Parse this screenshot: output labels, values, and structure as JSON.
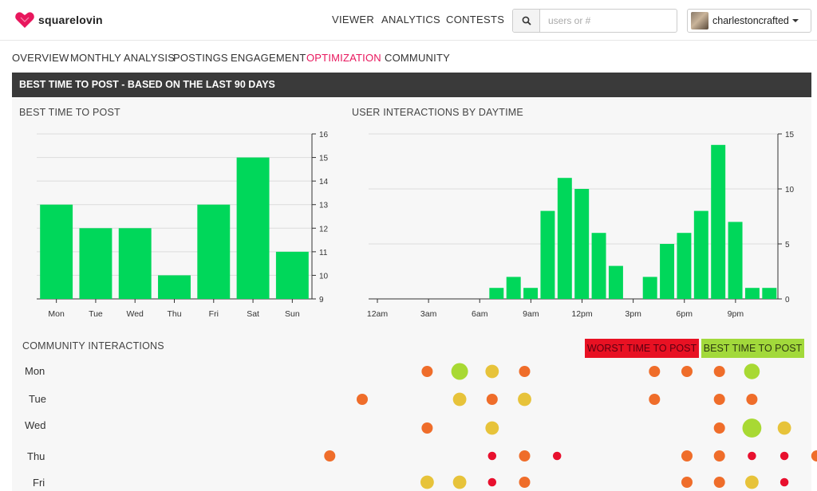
{
  "app": {
    "name": "squarelovin"
  },
  "topnav": [
    {
      "label": "VIEWER"
    },
    {
      "label": "ANALYTICS"
    },
    {
      "label": "CONTESTS"
    }
  ],
  "search": {
    "placeholder": "users or #"
  },
  "user": {
    "name": "charlestoncrafted"
  },
  "subnav": [
    {
      "label": "OVERVIEW"
    },
    {
      "label": "MONTHLY ANALYSIS"
    },
    {
      "label": "POSTINGS"
    },
    {
      "label": "ENGAGEMENT"
    },
    {
      "label": "OPTIMIZATION",
      "active": true
    },
    {
      "label": "COMMUNITY"
    }
  ],
  "banner": {
    "title": "BEST TIME TO POST - BASED ON THE LAST 90 DAYS"
  },
  "colors": {
    "bar": "#00d75a",
    "accent": "#e8175d",
    "worst": "#e81123",
    "best": "#a2d93b",
    "dot_high": "#a8d933",
    "dot_mid": "#e7c33a",
    "dot_low": "#ef6d2a",
    "dot_min": "#e8102e"
  },
  "chart_data": [
    {
      "type": "bar",
      "title": "BEST TIME TO POST",
      "categories": [
        "Mon",
        "Tue",
        "Wed",
        "Thu",
        "Fri",
        "Sat",
        "Sun"
      ],
      "values": [
        13,
        12,
        12,
        10,
        13,
        15,
        11
      ],
      "ylim": [
        9,
        16
      ],
      "yticks": [
        9,
        10,
        11,
        12,
        13,
        14,
        15,
        16
      ],
      "grid": true
    },
    {
      "type": "bar",
      "title": "USER INTERACTIONS BY DAYTIME",
      "x": [
        0,
        1,
        2,
        3,
        4,
        5,
        6,
        7,
        8,
        9,
        10,
        11,
        12,
        13,
        14,
        15,
        16,
        17,
        18,
        19,
        20,
        21,
        22,
        23
      ],
      "values": [
        0,
        0,
        0,
        0,
        0,
        0,
        0,
        1,
        2,
        1,
        8,
        11,
        10,
        6,
        3,
        0,
        2,
        5,
        6,
        8,
        14,
        7,
        1,
        1
      ],
      "xtick_labels": [
        "12am",
        "3am",
        "6am",
        "9am",
        "12pm",
        "3pm",
        "6pm",
        "9pm"
      ],
      "xtick_positions": [
        0,
        3,
        6,
        9,
        12,
        15,
        18,
        21
      ],
      "ylim": [
        0,
        15
      ],
      "yticks": [
        0,
        5,
        10,
        15
      ],
      "grid": true
    },
    {
      "type": "scatter",
      "title": "COMMUNITY INTERACTIONS",
      "rows": [
        "Mon",
        "Tue",
        "Wed",
        "Thu",
        "Fri"
      ],
      "points": [
        {
          "row": 0,
          "hour": 12,
          "level": "low",
          "size": 1
        },
        {
          "row": 0,
          "hour": 13,
          "level": "high",
          "size": 1.5
        },
        {
          "row": 0,
          "hour": 14,
          "level": "mid",
          "size": 1.2
        },
        {
          "row": 0,
          "hour": 15,
          "level": "low",
          "size": 1
        },
        {
          "row": 0,
          "hour": 19,
          "level": "low",
          "size": 1
        },
        {
          "row": 0,
          "hour": 20,
          "level": "low",
          "size": 1
        },
        {
          "row": 0,
          "hour": 21,
          "level": "low",
          "size": 1
        },
        {
          "row": 0,
          "hour": 22,
          "level": "high",
          "size": 1.4
        },
        {
          "row": 1,
          "hour": 10,
          "level": "low",
          "size": 1
        },
        {
          "row": 1,
          "hour": 13,
          "level": "mid",
          "size": 1.2
        },
        {
          "row": 1,
          "hour": 14,
          "level": "low",
          "size": 1
        },
        {
          "row": 1,
          "hour": 15,
          "level": "mid",
          "size": 1.2
        },
        {
          "row": 1,
          "hour": 19,
          "level": "low",
          "size": 1
        },
        {
          "row": 1,
          "hour": 21,
          "level": "low",
          "size": 1
        },
        {
          "row": 1,
          "hour": 22,
          "level": "low",
          "size": 1
        },
        {
          "row": 2,
          "hour": 12,
          "level": "low",
          "size": 1
        },
        {
          "row": 2,
          "hour": 14,
          "level": "mid",
          "size": 1.2
        },
        {
          "row": 2,
          "hour": 21,
          "level": "low",
          "size": 1
        },
        {
          "row": 2,
          "hour": 22,
          "level": "high",
          "size": 1.7
        },
        {
          "row": 2,
          "hour": 23,
          "level": "mid",
          "size": 1.2
        },
        {
          "row": 3,
          "hour": 9,
          "level": "low",
          "size": 1
        },
        {
          "row": 3,
          "hour": 14,
          "level": "min",
          "size": 0.75
        },
        {
          "row": 3,
          "hour": 15,
          "level": "low",
          "size": 1
        },
        {
          "row": 3,
          "hour": 16,
          "level": "min",
          "size": 0.75
        },
        {
          "row": 3,
          "hour": 20,
          "level": "low",
          "size": 1
        },
        {
          "row": 3,
          "hour": 21,
          "level": "low",
          "size": 1
        },
        {
          "row": 3,
          "hour": 22,
          "level": "min",
          "size": 0.75
        },
        {
          "row": 3,
          "hour": 23,
          "level": "min",
          "size": 0.75
        },
        {
          "row": 3,
          "hour": 24,
          "level": "low",
          "size": 1
        },
        {
          "row": 4,
          "hour": 12,
          "level": "mid",
          "size": 1.2
        },
        {
          "row": 4,
          "hour": 13,
          "level": "mid",
          "size": 1.2
        },
        {
          "row": 4,
          "hour": 14,
          "level": "min",
          "size": 0.75
        },
        {
          "row": 4,
          "hour": 15,
          "level": "low",
          "size": 1
        },
        {
          "row": 4,
          "hour": 20,
          "level": "low",
          "size": 1
        },
        {
          "row": 4,
          "hour": 21,
          "level": "low",
          "size": 1
        },
        {
          "row": 4,
          "hour": 22,
          "level": "mid",
          "size": 1.2
        },
        {
          "row": 4,
          "hour": 23,
          "level": "min",
          "size": 0.75
        }
      ]
    }
  ],
  "legend": {
    "worst": "WORST TIME TO POST",
    "best": "BEST TIME TO POST"
  }
}
